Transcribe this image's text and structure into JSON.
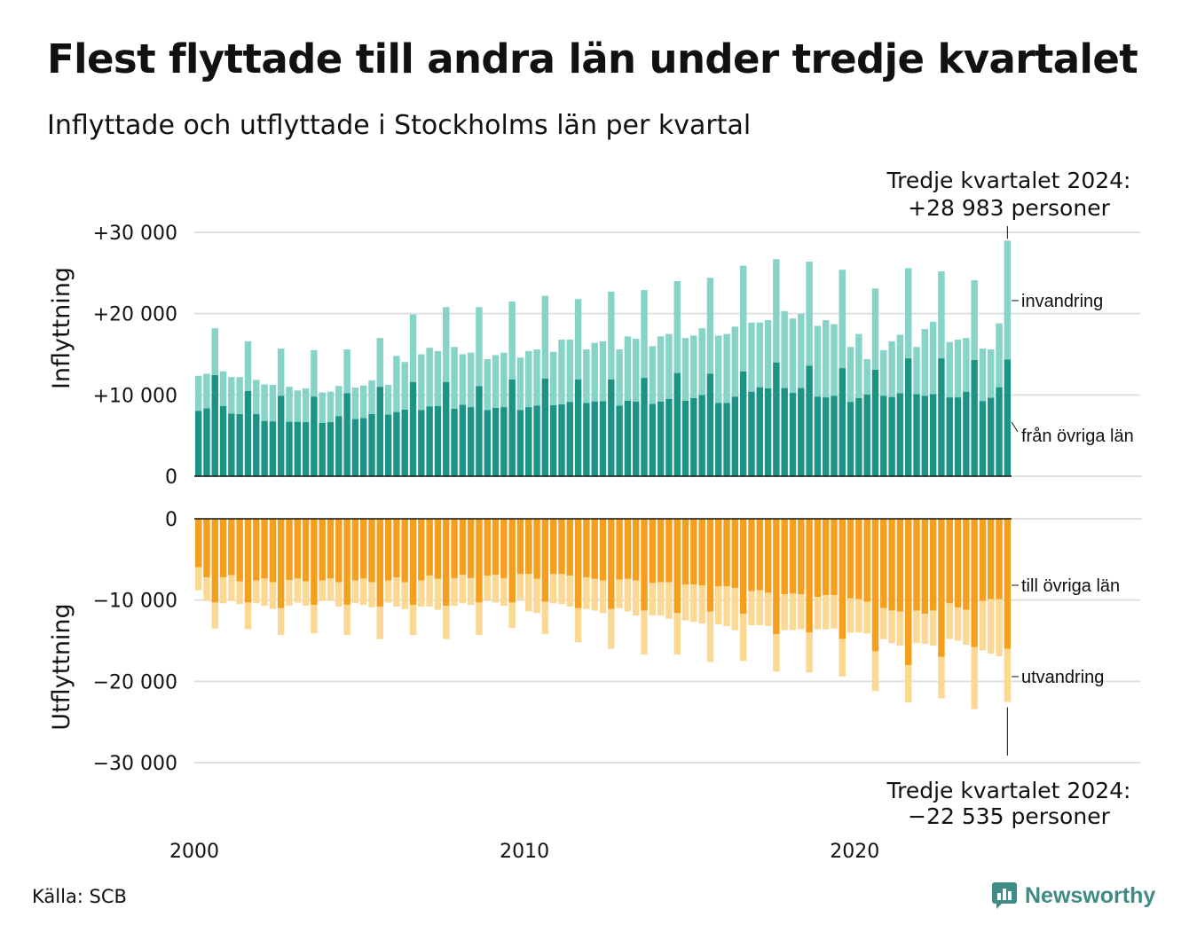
{
  "title": "Flest flyttade till andra län under tredje kvartalet",
  "subtitle": "Inflyttade och utflyttade i Stockholms län per kvartal",
  "source": "Källa: SCB",
  "brand": "Newsworthy",
  "colors": {
    "in_domestic": "#1c9485",
    "in_immigration": "#86d3c8",
    "out_domestic": "#f59f1c",
    "out_emigration": "#fbd893",
    "grid": "#e0e0e0",
    "brand": "#3f8b86"
  },
  "chart_data": {
    "type": "bar",
    "stacked": true,
    "x_range": [
      "2000 Q1",
      "2024 Q3"
    ],
    "x_ticks": [
      "2000",
      "2010",
      "2020"
    ],
    "panels": [
      {
        "name": "inflyttning",
        "ylabel": "Inflyttning",
        "y_ticks": [
          "0",
          "+10 000",
          "+20 000",
          "+30 000"
        ],
        "y_tick_values": [
          0,
          10000,
          20000,
          30000
        ],
        "ylim": [
          0,
          30000
        ],
        "series_labels": [
          "från övriga län",
          "invandring"
        ],
        "annotation": [
          "Tredje kvartalet 2024:",
          "+28 983 personer"
        ],
        "last_value": 28983,
        "segment_a": [
          8050,
          8350,
          12450,
          8650,
          7700,
          7650,
          10500,
          7650,
          6800,
          6750,
          9900,
          6700,
          6700,
          6650,
          9800,
          6550,
          6650,
          7400,
          10200,
          7050,
          7150,
          7650,
          11000,
          7600,
          7900,
          8200,
          11600,
          8150,
          8600,
          8650,
          11600,
          8300,
          8800,
          8500,
          11100,
          8150,
          8400,
          8500,
          11900,
          8150,
          8500,
          8700,
          12000,
          8750,
          8850,
          9150,
          11900,
          9000,
          9200,
          9250,
          11900,
          8700,
          9300,
          9200,
          12100,
          8900,
          9200,
          9500,
          12700,
          9300,
          9600,
          10000,
          12600,
          9000,
          9000,
          9800,
          12900,
          10400,
          10950,
          10800,
          14000,
          10850,
          10250,
          10850,
          13600,
          9800,
          9700,
          9900,
          13300,
          9150,
          9600,
          10050,
          13100,
          9900,
          9750,
          10200,
          14500,
          10100,
          9900,
          10100,
          14500,
          9700,
          9700,
          10400,
          14300,
          9250,
          9650,
          10950,
          14350
        ],
        "total": [
          12350,
          12600,
          18200,
          12900,
          12200,
          12200,
          16600,
          11850,
          11300,
          11250,
          15700,
          11000,
          10550,
          10800,
          15500,
          10300,
          10400,
          11100,
          15600,
          10900,
          11150,
          11800,
          17000,
          11250,
          14800,
          14050,
          19900,
          15000,
          15800,
          15400,
          20800,
          15900,
          15000,
          15200,
          20800,
          14400,
          14900,
          15200,
          21500,
          14600,
          15400,
          15600,
          22200,
          15300,
          16800,
          16800,
          21800,
          15600,
          16400,
          16600,
          22700,
          15600,
          17200,
          16900,
          22900,
          16000,
          17200,
          17500,
          24000,
          17000,
          17300,
          18200,
          24400,
          17300,
          17500,
          18400,
          25900,
          18900,
          18900,
          19200,
          26700,
          20300,
          19400,
          20000,
          26400,
          18500,
          19200,
          18700,
          25400,
          15900,
          17500,
          14400,
          23100,
          15500,
          16600,
          17400,
          25600,
          15900,
          18100,
          19000,
          25200,
          16500,
          16800,
          17000,
          24100,
          15700,
          15600,
          18800,
          28983
        ]
      },
      {
        "name": "utflyttning",
        "ylabel": "Utflyttning",
        "y_ticks": [
          "0",
          "−10 000",
          "−20 000",
          "−30 000"
        ],
        "y_tick_values": [
          0,
          -10000,
          -20000,
          -30000
        ],
        "ylim": [
          -30000,
          0
        ],
        "series_labels": [
          "till övriga län",
          "utvandring"
        ],
        "annotation": [
          "Tredje kvartalet 2024:",
          "−22 535 personer"
        ],
        "last_value": -22535,
        "segment_a": [
          -5950,
          -7200,
          -10300,
          -7200,
          -6950,
          -7700,
          -10300,
          -7600,
          -7350,
          -7800,
          -11000,
          -7550,
          -7350,
          -7700,
          -10600,
          -7600,
          -7350,
          -7800,
          -10600,
          -7600,
          -7350,
          -7800,
          -10800,
          -7600,
          -7200,
          -7800,
          -10600,
          -7600,
          -7000,
          -7400,
          -10700,
          -7300,
          -6900,
          -7300,
          -10300,
          -7000,
          -6900,
          -7300,
          -10300,
          -6800,
          -6800,
          -7400,
          -10200,
          -6800,
          -6800,
          -7000,
          -11000,
          -7200,
          -7400,
          -7600,
          -11100,
          -7500,
          -7400,
          -7600,
          -11300,
          -7900,
          -7800,
          -7800,
          -11600,
          -8100,
          -8100,
          -8200,
          -11400,
          -8300,
          -8300,
          -8500,
          -11700,
          -8900,
          -8800,
          -9100,
          -14200,
          -9300,
          -9200,
          -9300,
          -14000,
          -9600,
          -9400,
          -9400,
          -14800,
          -9800,
          -9900,
          -10200,
          -16300,
          -11000,
          -11300,
          -11400,
          -18000,
          -11300,
          -11700,
          -11300,
          -17000,
          -10400,
          -10900,
          -11200,
          -15800,
          -10100,
          -9900,
          -9900,
          -16000
        ],
        "total": [
          -8800,
          -10100,
          -13500,
          -10400,
          -10100,
          -10500,
          -13600,
          -10400,
          -10700,
          -11100,
          -14300,
          -10700,
          -10300,
          -10700,
          -14100,
          -10100,
          -10100,
          -10800,
          -14300,
          -10400,
          -10600,
          -10900,
          -14800,
          -10300,
          -10800,
          -11100,
          -14300,
          -10800,
          -10800,
          -11200,
          -14800,
          -10700,
          -10400,
          -10600,
          -14300,
          -10100,
          -10300,
          -10700,
          -13400,
          -9900,
          -11400,
          -11600,
          -14200,
          -10400,
          -10500,
          -10800,
          -15200,
          -11100,
          -11300,
          -11600,
          -16000,
          -11000,
          -11400,
          -11900,
          -16700,
          -11900,
          -11900,
          -12300,
          -16700,
          -12500,
          -12700,
          -12900,
          -17600,
          -13000,
          -13200,
          -13700,
          -17500,
          -13100,
          -13100,
          -13200,
          -18800,
          -13700,
          -13700,
          -13600,
          -18900,
          -13600,
          -13600,
          -13500,
          -19400,
          -14000,
          -14000,
          -14100,
          -21200,
          -14800,
          -15300,
          -15600,
          -22600,
          -15300,
          -15400,
          -15600,
          -22100,
          -14800,
          -15000,
          -15500,
          -23400,
          -16200,
          -16600,
          -16900,
          -22535
        ]
      }
    ]
  }
}
